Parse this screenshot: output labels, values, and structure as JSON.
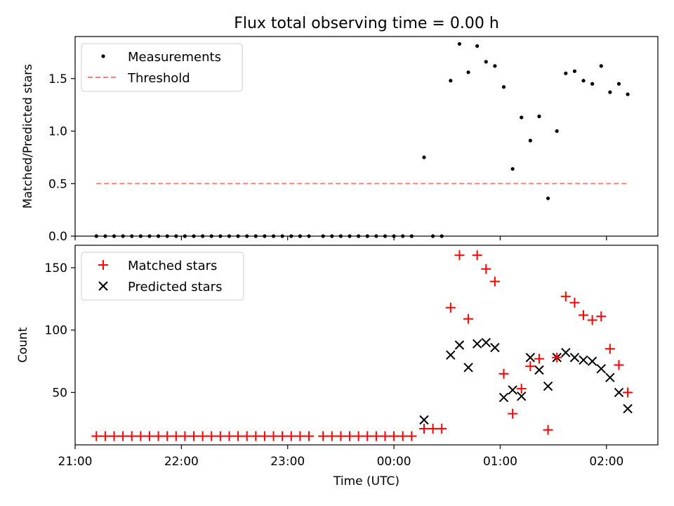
{
  "title": "Flux total observing time = 0.00 h",
  "chart_data": [
    {
      "type": "scatter",
      "ylabel": "Matched/Predicted stars",
      "ylim": [
        0,
        1.9
      ],
      "yticks": [
        0.0,
        0.5,
        1.0,
        1.5
      ],
      "ytick_labels": [
        "0.0",
        "0.5",
        "1.0",
        "1.5"
      ],
      "xlim": [
        "21:00",
        "02:29"
      ],
      "grid": false,
      "legend_position": "top-left",
      "series": [
        {
          "name": "Measurements",
          "marker": "dot",
          "color": "#000000",
          "points": [
            [
              "21:12",
              0
            ],
            [
              "21:17",
              0
            ],
            [
              "21:22",
              0
            ],
            [
              "21:27",
              0
            ],
            [
              "21:32",
              0
            ],
            [
              "21:37",
              0
            ],
            [
              "21:42",
              0
            ],
            [
              "21:47",
              0
            ],
            [
              "21:52",
              0
            ],
            [
              "21:57",
              0
            ],
            [
              "22:02",
              0
            ],
            [
              "22:07",
              0
            ],
            [
              "22:12",
              0
            ],
            [
              "22:17",
              0
            ],
            [
              "22:22",
              0
            ],
            [
              "22:27",
              0
            ],
            [
              "22:32",
              0
            ],
            [
              "22:37",
              0
            ],
            [
              "22:42",
              0
            ],
            [
              "22:47",
              0
            ],
            [
              "22:52",
              0
            ],
            [
              "22:57",
              0
            ],
            [
              "23:02",
              0
            ],
            [
              "23:07",
              0
            ],
            [
              "23:12",
              0
            ],
            [
              "23:20",
              0
            ],
            [
              "23:25",
              0
            ],
            [
              "23:30",
              0
            ],
            [
              "23:35",
              0
            ],
            [
              "23:40",
              0
            ],
            [
              "23:45",
              0
            ],
            [
              "23:50",
              0
            ],
            [
              "23:55",
              0
            ],
            [
              "00:00",
              0
            ],
            [
              "00:05",
              0
            ],
            [
              "00:10",
              0
            ],
            [
              "00:17",
              0.75
            ],
            [
              "00:22",
              0
            ],
            [
              "00:27",
              0
            ],
            [
              "00:32",
              1.48
            ],
            [
              "00:37",
              1.83
            ],
            [
              "00:42",
              1.56
            ],
            [
              "00:47",
              1.81
            ],
            [
              "00:52",
              1.66
            ],
            [
              "00:57",
              1.62
            ],
            [
              "01:02",
              1.42
            ],
            [
              "01:07",
              0.64
            ],
            [
              "01:12",
              1.13
            ],
            [
              "01:17",
              0.91
            ],
            [
              "01:22",
              1.14
            ],
            [
              "01:27",
              0.36
            ],
            [
              "01:32",
              1.0
            ],
            [
              "01:37",
              1.55
            ],
            [
              "01:42",
              1.57
            ],
            [
              "01:47",
              1.48
            ],
            [
              "01:52",
              1.45
            ],
            [
              "01:57",
              1.62
            ],
            [
              "02:02",
              1.37
            ],
            [
              "02:07",
              1.45
            ],
            [
              "02:12",
              1.35
            ]
          ]
        },
        {
          "name": "Threshold",
          "marker": "dashed-line",
          "color": "#ff8080",
          "points": [
            [
              "21:12",
              0.5
            ],
            [
              "02:12",
              0.5
            ]
          ]
        }
      ]
    },
    {
      "type": "scatter",
      "xlabel": "Time (UTC)",
      "ylabel": "Count",
      "ylim": [
        8,
        168
      ],
      "yticks": [
        50,
        100,
        150
      ],
      "ytick_labels": [
        "50",
        "100",
        "150"
      ],
      "xlim": [
        "21:00",
        "02:29"
      ],
      "xticks": [
        "21:00",
        "22:00",
        "23:00",
        "00:00",
        "01:00",
        "02:00"
      ],
      "grid": false,
      "legend_position": "top-left",
      "series": [
        {
          "name": "Matched stars",
          "marker": "plus",
          "color": "#ff0000",
          "points": [
            [
              "21:12",
              15
            ],
            [
              "21:17",
              15
            ],
            [
              "21:22",
              15
            ],
            [
              "21:27",
              15
            ],
            [
              "21:32",
              15
            ],
            [
              "21:37",
              15
            ],
            [
              "21:42",
              15
            ],
            [
              "21:47",
              15
            ],
            [
              "21:52",
              15
            ],
            [
              "21:57",
              15
            ],
            [
              "22:02",
              15
            ],
            [
              "22:07",
              15
            ],
            [
              "22:12",
              15
            ],
            [
              "22:17",
              15
            ],
            [
              "22:22",
              15
            ],
            [
              "22:27",
              15
            ],
            [
              "22:32",
              15
            ],
            [
              "22:37",
              15
            ],
            [
              "22:42",
              15
            ],
            [
              "22:47",
              15
            ],
            [
              "22:52",
              15
            ],
            [
              "22:57",
              15
            ],
            [
              "23:02",
              15
            ],
            [
              "23:07",
              15
            ],
            [
              "23:12",
              15
            ],
            [
              "23:20",
              15
            ],
            [
              "23:25",
              15
            ],
            [
              "23:30",
              15
            ],
            [
              "23:35",
              15
            ],
            [
              "23:40",
              15
            ],
            [
              "23:45",
              15
            ],
            [
              "23:50",
              15
            ],
            [
              "23:55",
              15
            ],
            [
              "00:00",
              15
            ],
            [
              "00:05",
              15
            ],
            [
              "00:10",
              15
            ],
            [
              "00:17",
              21
            ],
            [
              "00:22",
              21
            ],
            [
              "00:27",
              21
            ],
            [
              "00:32",
              118
            ],
            [
              "00:37",
              160
            ],
            [
              "00:42",
              109
            ],
            [
              "00:47",
              160
            ],
            [
              "00:52",
              149
            ],
            [
              "00:57",
              139
            ],
            [
              "01:02",
              65
            ],
            [
              "01:07",
              33
            ],
            [
              "01:12",
              53
            ],
            [
              "01:17",
              71
            ],
            [
              "01:22",
              77
            ],
            [
              "01:27",
              20
            ],
            [
              "01:32",
              78
            ],
            [
              "01:37",
              127
            ],
            [
              "01:42",
              122
            ],
            [
              "01:47",
              112
            ],
            [
              "01:52",
              108
            ],
            [
              "01:57",
              111
            ],
            [
              "02:02",
              85
            ],
            [
              "02:07",
              72
            ],
            [
              "02:12",
              50
            ]
          ]
        },
        {
          "name": "Predicted stars",
          "marker": "x",
          "color": "#000000",
          "points": [
            [
              "00:17",
              28
            ],
            [
              "00:32",
              80
            ],
            [
              "00:37",
              88
            ],
            [
              "00:42",
              70
            ],
            [
              "00:47",
              89
            ],
            [
              "00:52",
              90
            ],
            [
              "00:57",
              86
            ],
            [
              "01:02",
              46
            ],
            [
              "01:07",
              52
            ],
            [
              "01:12",
              47
            ],
            [
              "01:17",
              78
            ],
            [
              "01:22",
              68
            ],
            [
              "01:27",
              55
            ],
            [
              "01:32",
              78
            ],
            [
              "01:37",
              82
            ],
            [
              "01:42",
              78
            ],
            [
              "01:47",
              76
            ],
            [
              "01:52",
              75
            ],
            [
              "01:57",
              69
            ],
            [
              "02:02",
              62
            ],
            [
              "02:07",
              50
            ],
            [
              "02:12",
              37
            ]
          ]
        }
      ]
    }
  ]
}
